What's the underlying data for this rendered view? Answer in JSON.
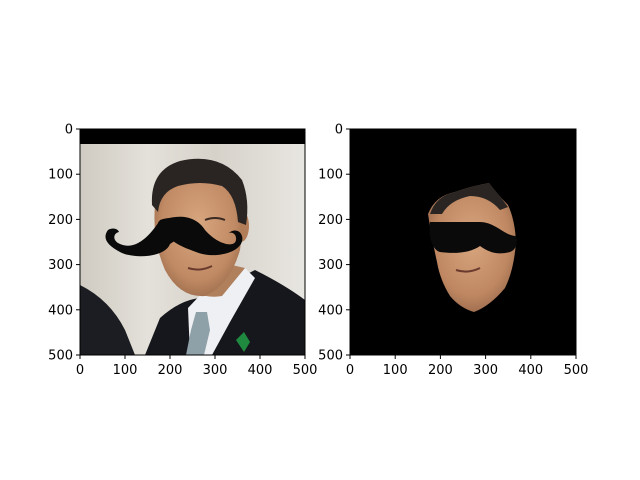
{
  "chart_data": [
    {
      "type": "image",
      "title": "",
      "xlabel": "",
      "ylabel": "",
      "xlim": [
        0,
        500
      ],
      "ylim": [
        500,
        0
      ],
      "xticks": [
        0,
        100,
        200,
        300,
        400,
        500
      ],
      "yticks": [
        0,
        100,
        200,
        300,
        400,
        500
      ],
      "xtick_labels": [
        "0",
        "100",
        "200",
        "300",
        "400",
        "500"
      ],
      "ytick_labels": [
        "0",
        "100",
        "200",
        "300",
        "400",
        "500"
      ],
      "content": "photo of man in suit with black mustache overlay"
    },
    {
      "type": "image",
      "title": "",
      "xlabel": "",
      "ylabel": "",
      "xlim": [
        0,
        500
      ],
      "ylim": [
        500,
        0
      ],
      "xticks": [
        0,
        100,
        200,
        300,
        400,
        500
      ],
      "yticks": [
        0,
        100,
        200,
        300,
        400,
        500
      ],
      "xtick_labels": [
        "0",
        "100",
        "200",
        "300",
        "400",
        "500"
      ],
      "ytick_labels": [
        "0",
        "100",
        "200",
        "300",
        "400",
        "500"
      ],
      "content": "masked face region on black background with black mustache overlay"
    }
  ],
  "colors": {
    "background": "#ffffff",
    "mask": "#000000",
    "mustache": "#0a0a0a",
    "wall": "#d9d6cf",
    "suit": "#15171c",
    "shirt": "#f2f2f4",
    "tie": "#8ea0a8",
    "skin": "#c9966f",
    "hair": "#2a2522"
  }
}
